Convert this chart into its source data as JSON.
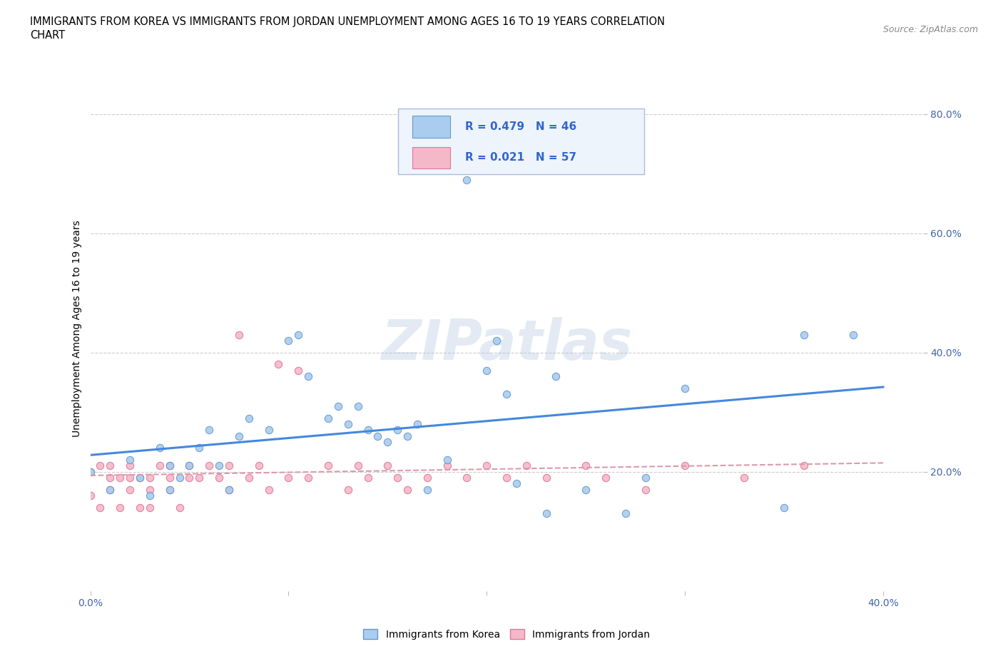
{
  "title_line1": "IMMIGRANTS FROM KOREA VS IMMIGRANTS FROM JORDAN UNEMPLOYMENT AMONG AGES 16 TO 19 YEARS CORRELATION",
  "title_line2": "CHART",
  "source_text": "Source: ZipAtlas.com",
  "ylabel": "Unemployment Among Ages 16 to 19 years",
  "xlim": [
    0.0,
    0.42
  ],
  "ylim": [
    0.0,
    0.88
  ],
  "xtick_labels": [
    "0.0%",
    "",
    "",
    "",
    "40.0%"
  ],
  "xtick_values": [
    0.0,
    0.1,
    0.2,
    0.3,
    0.4
  ],
  "ytick_labels": [
    "20.0%",
    "40.0%",
    "60.0%",
    "80.0%"
  ],
  "ytick_values": [
    0.2,
    0.4,
    0.6,
    0.8
  ],
  "watermark": "ZIPatlas",
  "korea_R": 0.479,
  "korea_N": 46,
  "jordan_R": 0.021,
  "jordan_N": 57,
  "korea_color": "#aaccee",
  "korea_edge": "#6699cc",
  "jordan_color": "#f5b8c8",
  "jordan_edge": "#dd7799",
  "korea_line_color": "#4488dd",
  "jordan_line_color": "#dd99aa",
  "legend_text_color": "#3366cc",
  "background_color": "#ffffff",
  "korea_x": [
    0.0,
    0.01,
    0.02,
    0.025,
    0.03,
    0.035,
    0.04,
    0.04,
    0.045,
    0.05,
    0.055,
    0.06,
    0.065,
    0.07,
    0.075,
    0.08,
    0.09,
    0.1,
    0.105,
    0.11,
    0.12,
    0.125,
    0.13,
    0.135,
    0.14,
    0.145,
    0.15,
    0.155,
    0.16,
    0.165,
    0.17,
    0.18,
    0.19,
    0.2,
    0.205,
    0.21,
    0.215,
    0.23,
    0.235,
    0.25,
    0.27,
    0.28,
    0.3,
    0.35,
    0.36,
    0.385
  ],
  "korea_y": [
    0.2,
    0.17,
    0.22,
    0.19,
    0.16,
    0.24,
    0.21,
    0.17,
    0.19,
    0.21,
    0.24,
    0.27,
    0.21,
    0.17,
    0.26,
    0.29,
    0.27,
    0.42,
    0.43,
    0.36,
    0.29,
    0.31,
    0.28,
    0.31,
    0.27,
    0.26,
    0.25,
    0.27,
    0.26,
    0.28,
    0.17,
    0.22,
    0.69,
    0.37,
    0.42,
    0.33,
    0.18,
    0.13,
    0.36,
    0.17,
    0.13,
    0.19,
    0.34,
    0.14,
    0.43,
    0.43
  ],
  "jordan_x": [
    0.0,
    0.0,
    0.005,
    0.005,
    0.01,
    0.01,
    0.01,
    0.015,
    0.015,
    0.02,
    0.02,
    0.02,
    0.025,
    0.025,
    0.03,
    0.03,
    0.03,
    0.035,
    0.04,
    0.04,
    0.04,
    0.045,
    0.05,
    0.05,
    0.055,
    0.06,
    0.065,
    0.07,
    0.07,
    0.075,
    0.08,
    0.085,
    0.09,
    0.095,
    0.1,
    0.105,
    0.11,
    0.12,
    0.13,
    0.135,
    0.14,
    0.15,
    0.155,
    0.16,
    0.17,
    0.18,
    0.19,
    0.2,
    0.21,
    0.22,
    0.23,
    0.25,
    0.26,
    0.28,
    0.3,
    0.33,
    0.36
  ],
  "jordan_y": [
    0.2,
    0.16,
    0.14,
    0.21,
    0.19,
    0.17,
    0.21,
    0.14,
    0.19,
    0.19,
    0.17,
    0.21,
    0.19,
    0.14,
    0.17,
    0.19,
    0.14,
    0.21,
    0.19,
    0.21,
    0.17,
    0.14,
    0.19,
    0.21,
    0.19,
    0.21,
    0.19,
    0.17,
    0.21,
    0.43,
    0.19,
    0.21,
    0.17,
    0.38,
    0.19,
    0.37,
    0.19,
    0.21,
    0.17,
    0.21,
    0.19,
    0.21,
    0.19,
    0.17,
    0.19,
    0.21,
    0.19,
    0.21,
    0.19,
    0.21,
    0.19,
    0.21,
    0.19,
    0.17,
    0.21,
    0.19,
    0.21
  ]
}
